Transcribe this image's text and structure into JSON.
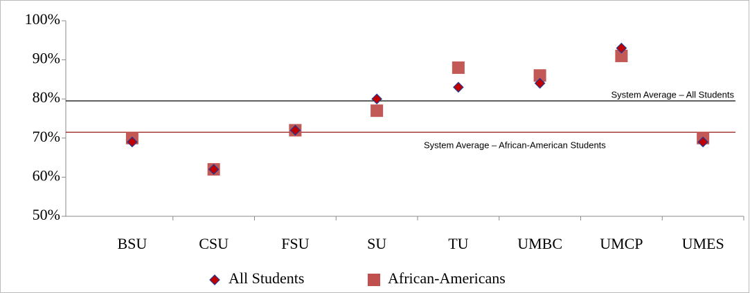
{
  "chart_data": {
    "type": "scatter",
    "categories": [
      "BSU",
      "CSU",
      "FSU",
      "SU",
      "TU",
      "UMBC",
      "UMCP",
      "UMES"
    ],
    "series": [
      {
        "name": "All Students",
        "color": "#c00000",
        "marker": "diamond",
        "values": [
          69,
          62,
          72,
          80,
          83,
          84,
          93,
          69
        ]
      },
      {
        "name": "African-Americans",
        "color": "#c0504d",
        "marker": "square",
        "values": [
          70,
          62,
          72,
          77,
          88,
          86,
          91,
          70
        ]
      }
    ],
    "reference_lines": [
      {
        "label": "System Average – All Students",
        "value": 79.5,
        "color": "#000000"
      },
      {
        "label": "System Average – African-American Students",
        "value": 71.5,
        "color": "#8b0000"
      }
    ],
    "ylim": [
      50,
      100
    ],
    "yticks": [
      {
        "value": 50,
        "label": "50%"
      },
      {
        "value": 60,
        "label": "60%"
      },
      {
        "value": 70,
        "label": "70%"
      },
      {
        "value": 80,
        "label": "80%"
      },
      {
        "value": 90,
        "label": "90%"
      },
      {
        "value": 100,
        "label": "100%"
      }
    ],
    "legend": "bottom"
  }
}
